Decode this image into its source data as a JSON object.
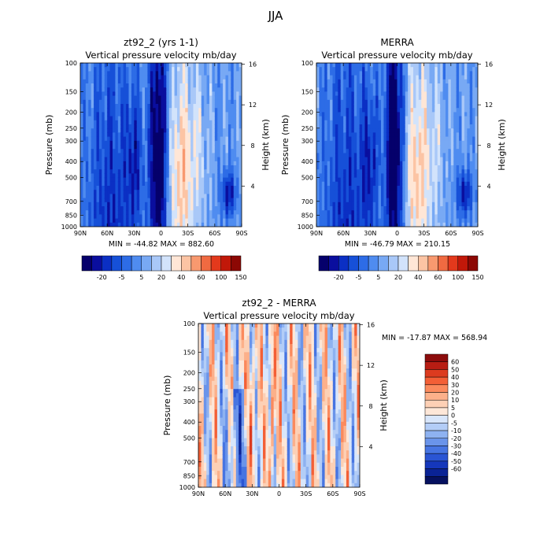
{
  "figure_title": "JJA",
  "panels": [
    {
      "title": "zt92_2 (yrs 1-1)",
      "subtitle": "Vertical pressure velocity   mb/day",
      "stats": "MIN = -44.82   MAX = 882.60",
      "ylabel": "Pressure (mb)",
      "ylabel2": "Height (km)"
    },
    {
      "title": "MERRA",
      "subtitle": "Vertical pressure velocity   mb/day",
      "stats": "MIN = -46.79   MAX = 210.15",
      "ylabel": "Pressure (mb)",
      "ylabel2": "Height (km)"
    },
    {
      "title": "zt92_2 - MERRA",
      "subtitle": "Vertical pressure velocity   mb/day",
      "stats": "MIN = -17.87   MAX = 568.94",
      "ylabel": "Pressure (mb)",
      "ylabel2": "Height (km)"
    }
  ],
  "chart_data": [
    {
      "type": "heatmap",
      "title": "zt92_2 (yrs 1-1)",
      "subtitle": "Vertical pressure velocity   mb/day",
      "x": [
        "90N",
        "60N",
        "30N",
        "0",
        "30S",
        "60S",
        "90S"
      ],
      "y_pressure": [
        "100",
        "150",
        "200",
        "250",
        "300",
        "400",
        "500",
        "700",
        "850",
        "1000"
      ],
      "y_height_km": [
        "4",
        "8",
        "12",
        "16"
      ],
      "xlim": [
        90,
        -90
      ],
      "ylim": [
        1000,
        100
      ],
      "yscale": "log",
      "min": -44.82,
      "max": 882.6,
      "colorbar": {
        "levels": [
          "-20",
          "-5",
          "5",
          "20",
          "40",
          "60",
          "100",
          "150"
        ],
        "orientation": "horizontal"
      }
    },
    {
      "type": "heatmap",
      "title": "MERRA",
      "subtitle": "Vertical pressure velocity   mb/day",
      "x": [
        "90N",
        "60N",
        "30N",
        "0",
        "30S",
        "60S",
        "90S"
      ],
      "y_pressure": [
        "100",
        "150",
        "200",
        "250",
        "300",
        "400",
        "500",
        "700",
        "850",
        "1000"
      ],
      "y_height_km": [
        "4",
        "8",
        "12",
        "16"
      ],
      "xlim": [
        90,
        -90
      ],
      "ylim": [
        1000,
        100
      ],
      "yscale": "log",
      "min": -46.79,
      "max": 210.15,
      "colorbar": {
        "levels": [
          "-20",
          "-5",
          "5",
          "20",
          "40",
          "60",
          "100",
          "150"
        ],
        "orientation": "horizontal"
      }
    },
    {
      "type": "heatmap",
      "title": "zt92_2 - MERRA",
      "subtitle": "Vertical pressure velocity   mb/day",
      "x": [
        "90N",
        "60N",
        "30N",
        "0",
        "30S",
        "60S",
        "90S"
      ],
      "y_pressure": [
        "100",
        "150",
        "200",
        "250",
        "300",
        "400",
        "500",
        "700",
        "850",
        "1000"
      ],
      "y_height_km": [
        "4",
        "8",
        "12",
        "16"
      ],
      "xlim": [
        90,
        -90
      ],
      "ylim": [
        1000,
        100
      ],
      "yscale": "log",
      "min": -17.87,
      "max": 568.94,
      "colorbar": {
        "levels": [
          "60",
          "50",
          "40",
          "30",
          "20",
          "10",
          "5",
          "0",
          "-5",
          "-10",
          "-20",
          "-30",
          "-40",
          "-50",
          "-60"
        ],
        "orientation": "vertical"
      }
    }
  ],
  "palettes": {
    "abs": [
      "#05006b",
      "#0a0e9e",
      "#0b2fc4",
      "#1650d8",
      "#2d6ce6",
      "#4f8cf0",
      "#78a9f4",
      "#a9c8f8",
      "#d2e3fb",
      "#ffe6d6",
      "#fcc4a4",
      "#f8996f",
      "#f06a41",
      "#e3391c",
      "#c11809",
      "#8c0804"
    ],
    "diff": [
      "#8c0c0c",
      "#b81d13",
      "#dc3b1f",
      "#f35f36",
      "#fb8a5d",
      "#fcb08a",
      "#fdd0b5",
      "#fde7d8",
      "#d8e6fb",
      "#b3cdf7",
      "#8eb2f1",
      "#6a94ea",
      "#4775e2",
      "#2a55d4",
      "#1537bb",
      "#0a2395",
      "#06115f"
    ]
  }
}
